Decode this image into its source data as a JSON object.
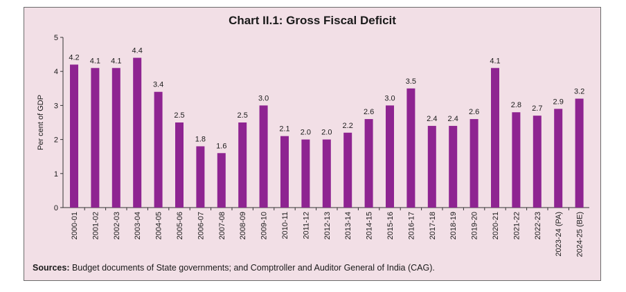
{
  "chart_data": {
    "type": "bar",
    "title": "Chart II.1: Gross Fiscal Deficit",
    "ylabel": "Per cent of GDP",
    "xlabel": "",
    "ylim": [
      0,
      5
    ],
    "yticks": [
      0,
      1,
      2,
      3,
      4,
      5
    ],
    "grid": false,
    "bar_color": "#8e2491",
    "categories": [
      "2000-01",
      "2001-02",
      "2002-03",
      "2003-04",
      "2004-05",
      "2005-06",
      "2006-07",
      "2007-08",
      "2008-09",
      "2009-10",
      "2010-11",
      "2011-12",
      "2012-13",
      "2013-14",
      "2014-15",
      "2015-16",
      "2016-17",
      "2017-18",
      "2018-19",
      "2019-20",
      "2020-21",
      "2021-22",
      "2022-23",
      "2023-24 (PA)",
      "2024-25 (BE)"
    ],
    "values": [
      4.2,
      4.1,
      4.1,
      4.4,
      3.4,
      2.5,
      1.8,
      1.6,
      2.5,
      3.0,
      2.1,
      2.0,
      2.0,
      2.2,
      2.6,
      3.0,
      3.5,
      2.4,
      2.4,
      2.6,
      4.1,
      2.8,
      2.7,
      2.9,
      3.2
    ],
    "data_labels": [
      "4.2",
      "4.1",
      "4.1",
      "4.4",
      "3.4",
      "2.5",
      "1.8",
      "1.6",
      "2.5",
      "3.0",
      "2.1",
      "2.0",
      "2.0",
      "2.2",
      "2.6",
      "3.0",
      "3.5",
      "2.4",
      "2.4",
      "2.6",
      "4.1",
      "2.8",
      "2.7",
      "2.9",
      "3.2"
    ]
  },
  "sources": {
    "label": "Sources:",
    "text": " Budget documents of State governments; and Comptroller and Auditor General of India (CAG)."
  }
}
